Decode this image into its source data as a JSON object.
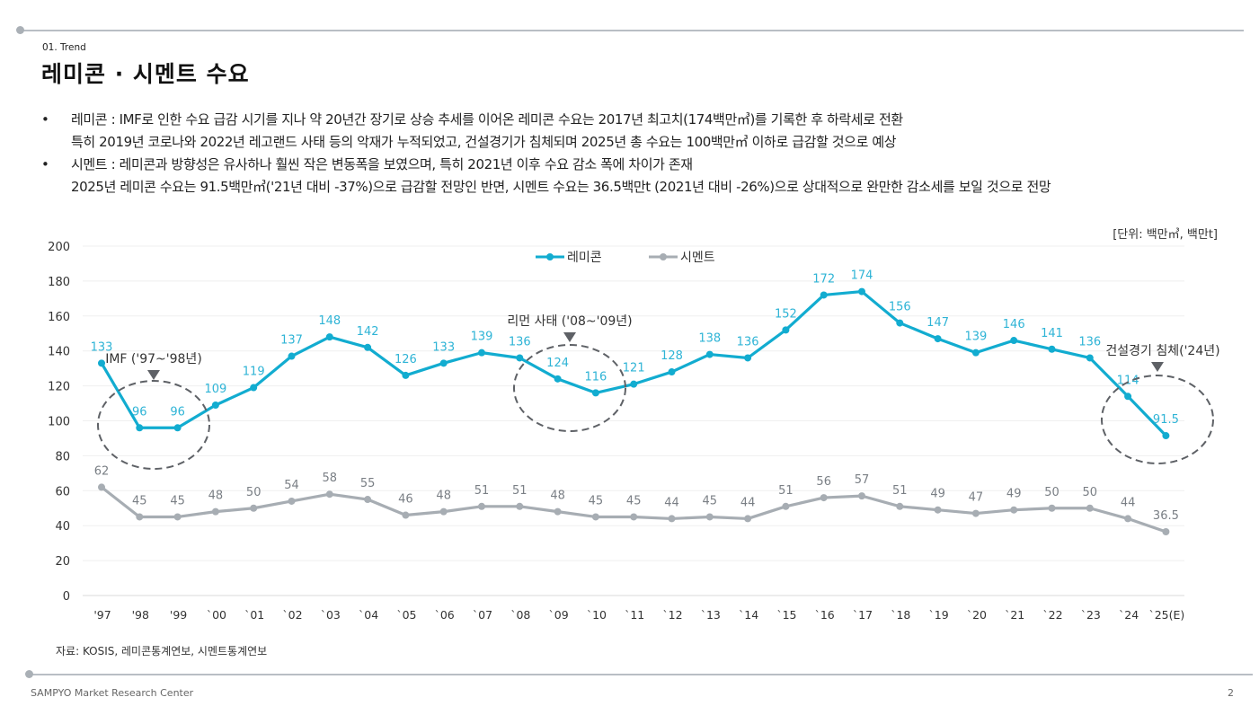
{
  "header": {
    "section_label": "01. Trend",
    "title": "레미콘 · 시멘트 수요"
  },
  "bullets": [
    {
      "marker": "•",
      "lines": [
        "레미콘 : IMF로 인한 수요 급감 시기를 지나 약 20년간 장기로 상승 추세를 이어온 레미콘 수요는 2017년 최고치(174백만㎥)를 기록한 후 하락세로 전환",
        "특히 2019년 코로나와 2022년 레고랜드 사태 등의 악재가 누적되었고, 건설경기가 침체되며 2025년 총 수요는 100백만㎥ 이하로 급감할 것으로 예상"
      ]
    },
    {
      "marker": "•",
      "lines": [
        "시멘트 : 레미콘과 방향성은 유사하나 훨씬 작은 변동폭을 보였으며, 특히 2021년 이후 수요 감소 폭에 차이가 존재",
        "2025년 레미콘 수요는 91.5백만㎥('21년 대비 -37%)으로 급감할 전망인 반면, 시멘트 수요는 36.5백만t (2021년 대비 -26%)으로 상대적으로 완만한 감소세를 보일 것으로 전망"
      ]
    }
  ],
  "unit_note": "[단위: 백만㎥, 백만t]",
  "chart_data": {
    "type": "line",
    "title": "",
    "xlabel": "",
    "ylabel": "",
    "ylim": [
      0,
      200
    ],
    "yticks": [
      0,
      20,
      40,
      60,
      80,
      100,
      120,
      140,
      160,
      180,
      200
    ],
    "grid": true,
    "legend_position": "top-center",
    "categories": [
      "'97",
      "'98",
      "'99",
      "`00",
      "`01",
      "`02",
      "`03",
      "`04",
      "`05",
      "`06",
      "`07",
      "`08",
      "`09",
      "`10",
      "`11",
      "`12",
      "`13",
      "`14",
      "`15",
      "`16",
      "`17",
      "`18",
      "`19",
      "`20",
      "`21",
      "`22",
      "`23",
      "`24",
      "`25(E)"
    ],
    "series": [
      {
        "name": "레미콘",
        "color": "#12acd0",
        "values": [
          133,
          96,
          96,
          109,
          119,
          137,
          148,
          142,
          126,
          133,
          139,
          136,
          124,
          116,
          121,
          128,
          138,
          136,
          152,
          172,
          174,
          156,
          147,
          139,
          146,
          141,
          136,
          114,
          91.5
        ]
      },
      {
        "name": "시멘트",
        "color": "#a7adb3",
        "values": [
          62,
          45,
          45,
          48,
          50,
          54,
          58,
          55,
          46,
          48,
          51,
          51,
          48,
          45,
          45,
          44,
          45,
          44,
          51,
          56,
          57,
          51,
          49,
          47,
          49,
          50,
          50,
          44,
          36.5
        ]
      }
    ],
    "annotations": [
      {
        "text": "IMF ('97~'98년)",
        "from_index": 1,
        "to_index": 2,
        "center_value": 98
      },
      {
        "text": "리먼 사태 ('08~'09년)",
        "from_index": 11,
        "to_index": 14,
        "center_value": 119
      },
      {
        "text": "건설경기 침체('24년)",
        "from_index": 27,
        "to_index": 28,
        "center_value": 100
      }
    ]
  },
  "footer": {
    "source": "자료: KOSIS, 레미콘통계연보, 시멘트통계연보",
    "brand": "SAMPYO Market Research Center",
    "page_number": "2"
  }
}
